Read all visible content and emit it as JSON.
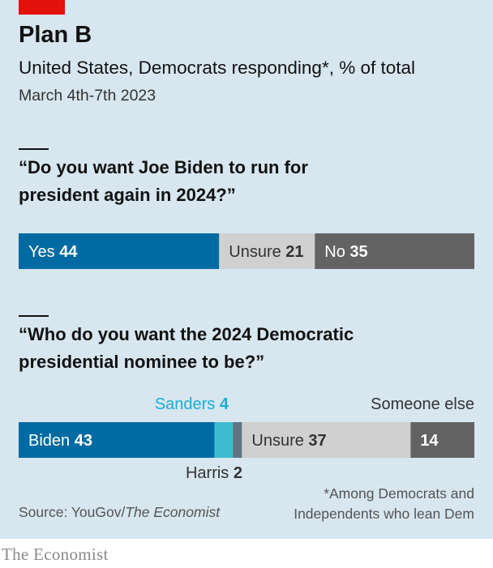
{
  "header": {
    "title": "Plan B",
    "subtitle": "United States, Democrats responding*, % of total",
    "date": "March 4th-7th 2023"
  },
  "colors": {
    "brand_red": "#e3120b",
    "dark_blue": "#006ba2",
    "cyan": "#3ebcd2",
    "slate": "#5e7584",
    "unsure_grey": "#d0d0d0",
    "dark_grey": "#636363",
    "background": "#d7e6ef"
  },
  "chart_data": [
    {
      "type": "bar",
      "orientation": "horizontal-stacked",
      "title": "“Do you want Joe Biden to run for president again in 2024?”",
      "units": "% of total",
      "xlim": [
        0,
        100
      ],
      "series": [
        {
          "name": "Yes",
          "value": 44,
          "color": "#006ba2",
          "label_color": "#ffffff"
        },
        {
          "name": "Unsure",
          "value": 21,
          "color": "#d0d0d0",
          "label_color": "#333333"
        },
        {
          "name": "No",
          "value": 35,
          "color": "#636363",
          "label_color": "#ffffff"
        }
      ]
    },
    {
      "type": "bar",
      "orientation": "horizontal-stacked",
      "title": "“Who do you want the 2024 Democratic presidential nominee to be?”",
      "units": "% of total",
      "xlim": [
        0,
        100
      ],
      "series": [
        {
          "name": "Biden",
          "value": 43,
          "color": "#006ba2",
          "label_color": "#ffffff",
          "label": "inside"
        },
        {
          "name": "Sanders",
          "value": 4,
          "color": "#3ebcd2",
          "label": "above"
        },
        {
          "name": "Harris",
          "value": 2,
          "color": "#5e7584",
          "label": "below"
        },
        {
          "name": "Unsure",
          "value": 37,
          "color": "#d0d0d0",
          "label_color": "#333333",
          "label": "inside"
        },
        {
          "name": "Someone else",
          "value": 14,
          "color": "#636363",
          "label_color": "#ffffff",
          "label": "value-inside-name-above"
        }
      ]
    }
  ],
  "questions": {
    "q1_line1": "“Do you want Joe Biden to run for",
    "q1_line2": "president again in 2024?”",
    "q2_line1": "“Who do you want the 2024 Democratic",
    "q2_line2": "presidential nominee to be?”"
  },
  "annotations": {
    "sanders_name": "Sanders",
    "sanders_value": "4",
    "harris_name": "Harris",
    "harris_value": "2",
    "someone_else": "Someone else"
  },
  "footer": {
    "note_line1": "*Among Democrats and",
    "note_line2": "Independents who lean Dem",
    "source_prefix": "Source: YouGov/",
    "source_italic": "The Economist",
    "brand": "The Economist"
  }
}
